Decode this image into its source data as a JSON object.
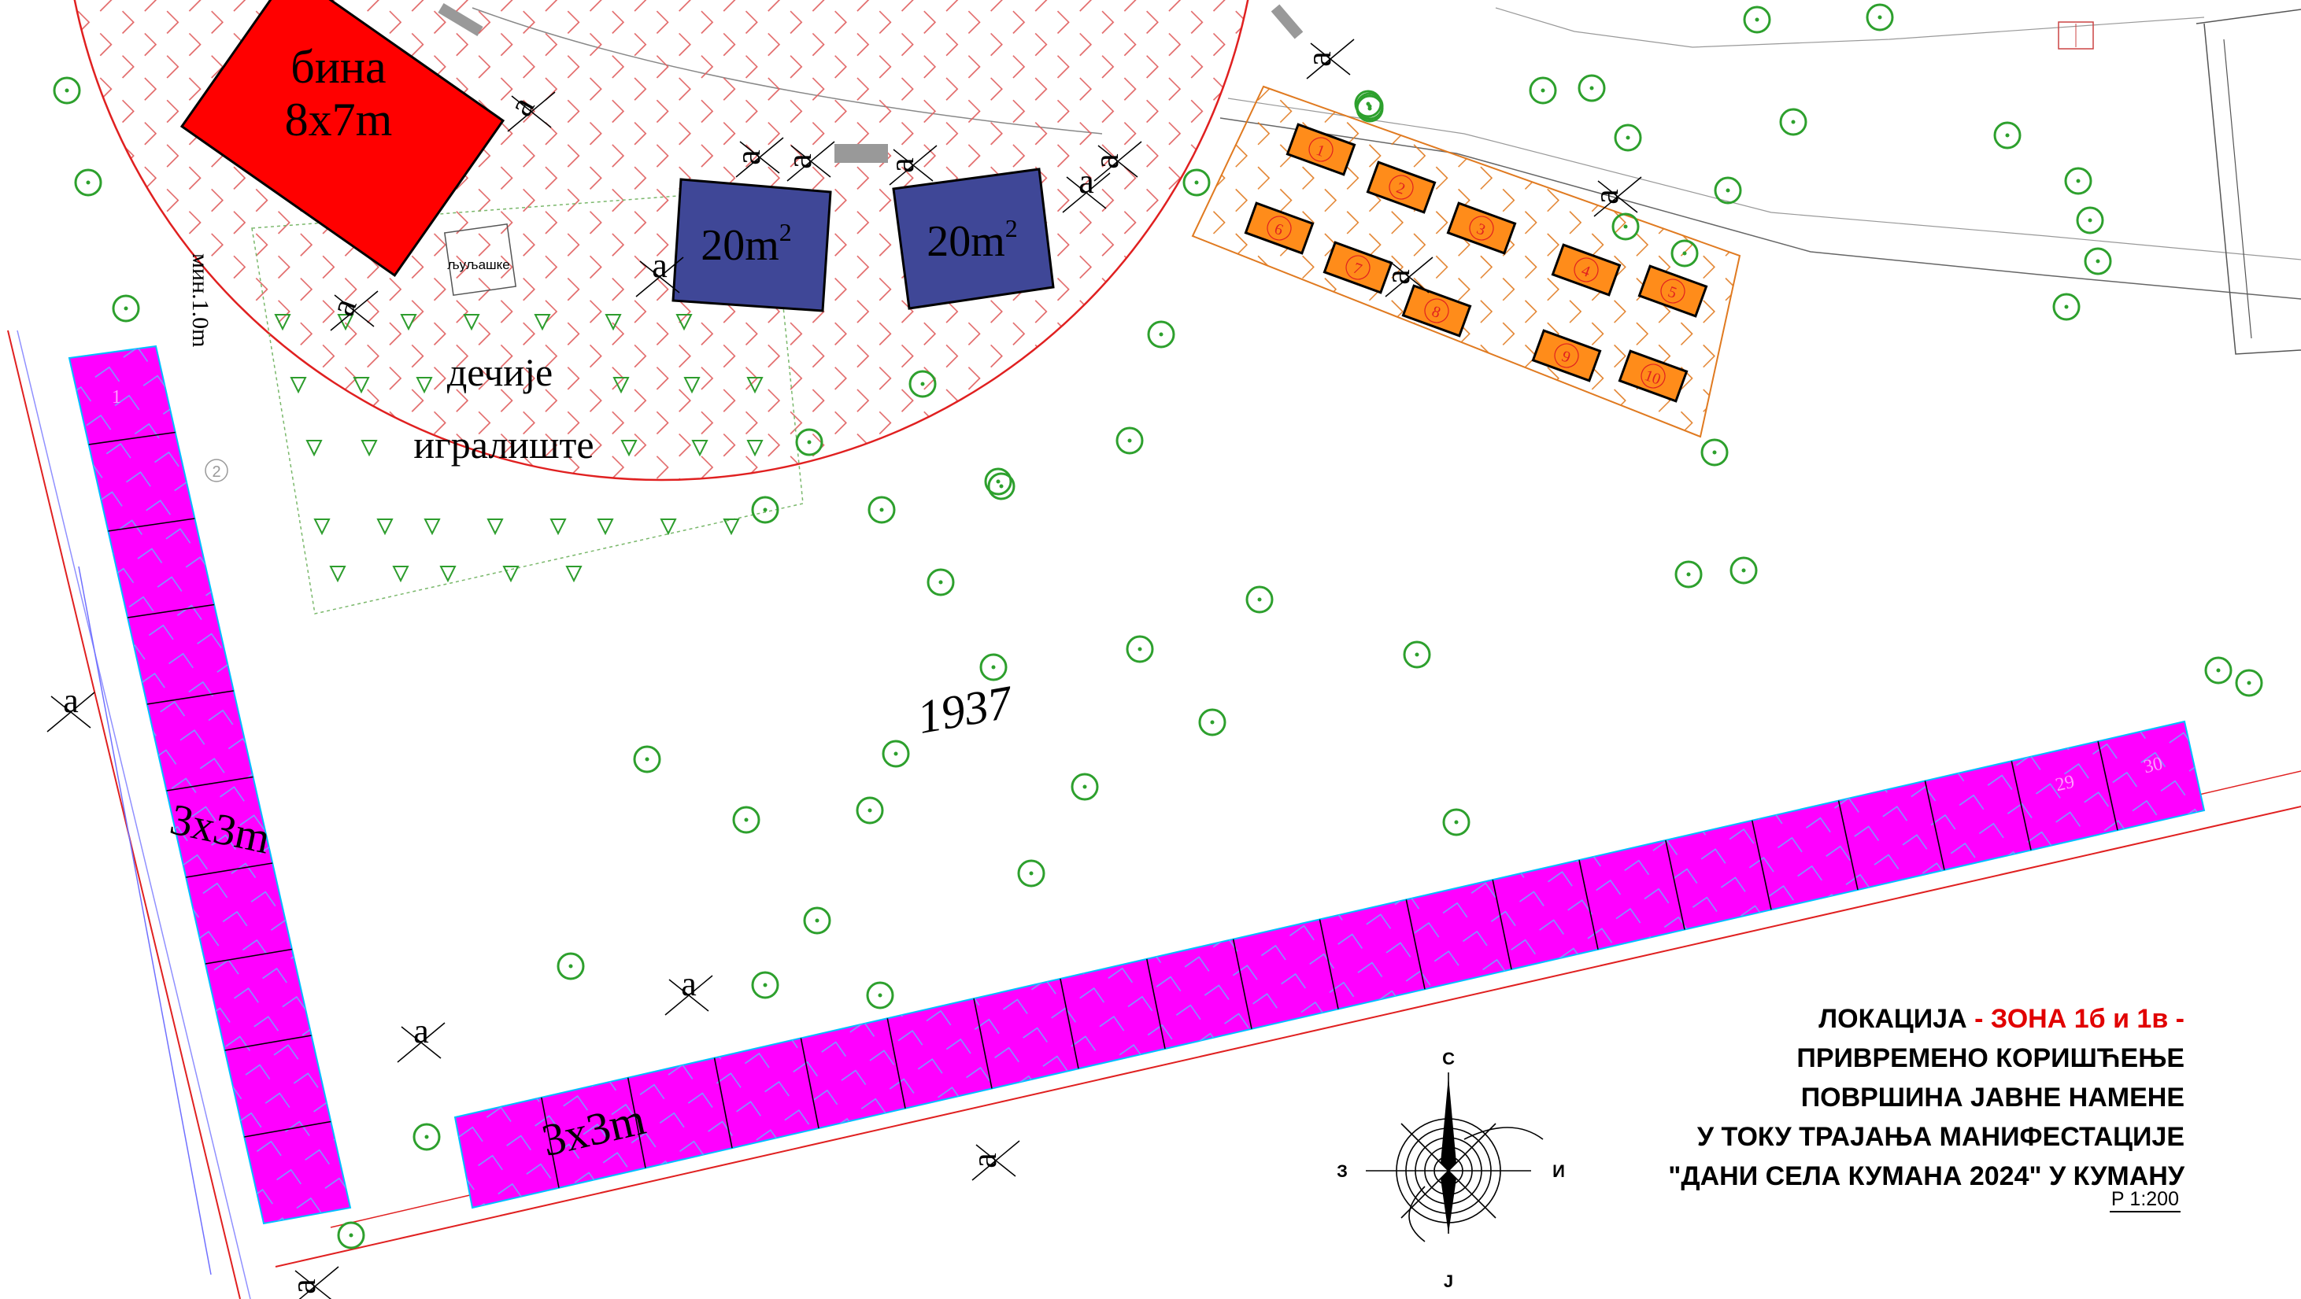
{
  "stage": {
    "label_line1": "бина",
    "label_line2": "8x7m",
    "color": "#ff0000"
  },
  "kiosks": [
    {
      "label": "20m",
      "sup": "2",
      "color": "#3f4797"
    },
    {
      "label": "20m",
      "sup": "2",
      "color": "#3f4797"
    }
  ],
  "playground": {
    "label_line1": "дечије",
    "label_line2": "игралиште",
    "swing_label": "љуљашке"
  },
  "stalls": {
    "size_label_vertical": "3x3m",
    "size_label_horizontal": "3x3m",
    "color": "#ff00ff",
    "numbers": [
      "1",
      "2",
      "29",
      "30"
    ]
  },
  "small_stands": {
    "color": "#ff8c1a",
    "numbers": [
      "1",
      "2",
      "3",
      "4",
      "5",
      "6",
      "7",
      "8",
      "9",
      "10"
    ]
  },
  "parcel_number": "1937",
  "dimension_marker": "a",
  "min_distance_label": "мин.1.0m",
  "compass": {
    "north": "С",
    "south": "Ј",
    "east": "И",
    "west": "З"
  },
  "legend": {
    "line1_prefix": "ЛОКАЦИЈА",
    "line1_zone": " - ЗОНА 1б и 1в -",
    "line2": "ПРИВРЕМЕНО КОРИШЋЕЊЕ",
    "line3": "ПОВРШИНА ЈАВНЕ НАМЕНЕ",
    "line4": "У ТОКУ ТРАЈАЊА МАНИФЕСТАЦИЈЕ",
    "line5": "\"ДАНИ СЕЛА КУМАНА 2024\" У КУМАНУ",
    "scale": "Р 1:200"
  }
}
